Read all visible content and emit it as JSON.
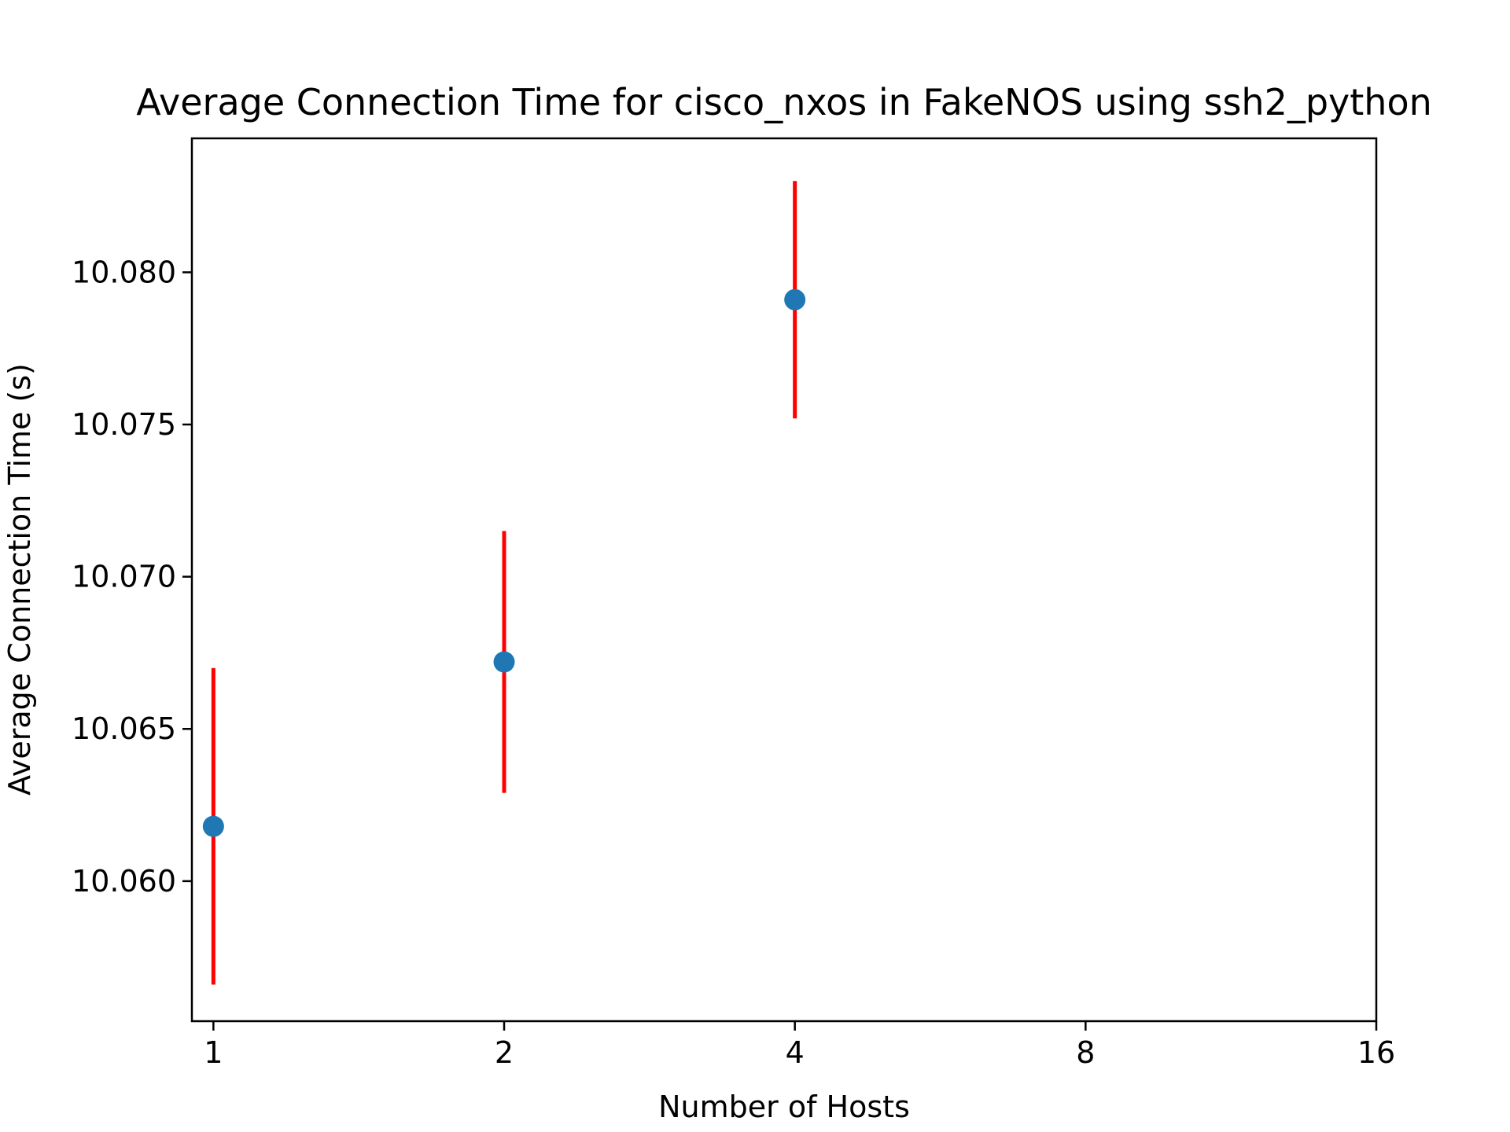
{
  "chart_data": {
    "type": "scatter",
    "title": "Average Connection Time for cisco_nxos in FakeNOS using ssh2_python",
    "xlabel": "Number of Hosts",
    "ylabel": "Average Connection Time (s)",
    "x_scale": "log2",
    "xlim": [
      0.95,
      16
    ],
    "x_ticks": [
      1,
      2,
      4,
      8,
      16
    ],
    "x_tick_labels": [
      "1",
      "2",
      "4",
      "8",
      "16"
    ],
    "ylim": [
      10.0554,
      10.0844
    ],
    "y_ticks": [
      10.06,
      10.065,
      10.07,
      10.075,
      10.08
    ],
    "y_tick_labels": [
      "10.060",
      "10.065",
      "10.070",
      "10.075",
      "10.080"
    ],
    "grid": false,
    "series": [
      {
        "marker_color": "#1f77b4",
        "errorbar_color": "#ff0000",
        "points": [
          {
            "x": 1,
            "y": 10.0618,
            "yerr": 0.0052
          },
          {
            "x": 2,
            "y": 10.0672,
            "yerr": 0.0043
          },
          {
            "x": 4,
            "y": 10.0791,
            "yerr": 0.0039
          }
        ]
      }
    ]
  }
}
